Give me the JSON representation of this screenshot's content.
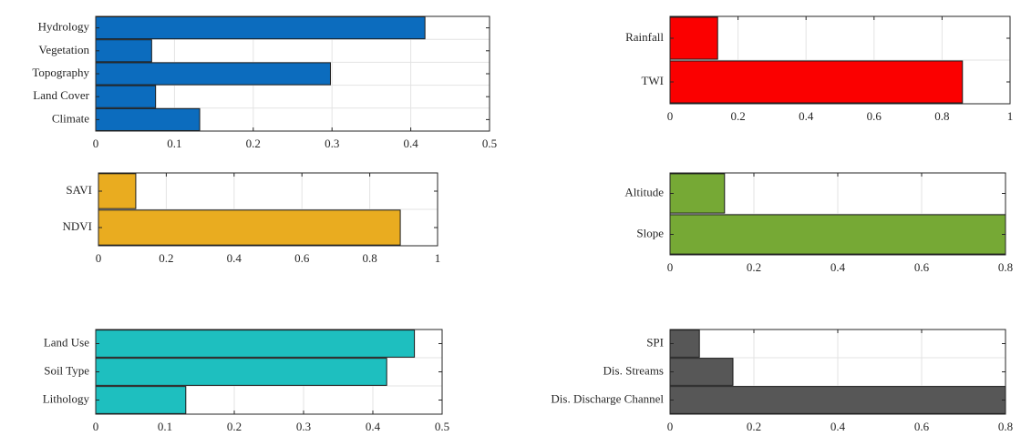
{
  "chart_data": [
    {
      "type": "bar",
      "orientation": "horizontal",
      "categories": [
        "Hydrology",
        "Vegetation",
        "Topography",
        "Land Cover",
        "Climate"
      ],
      "values": [
        0.418,
        0.071,
        0.298,
        0.076,
        0.132
      ],
      "xlim": [
        0,
        0.5
      ],
      "xticks": [
        "0",
        "0.1",
        "0.2",
        "0.3",
        "0.4",
        "0.5"
      ],
      "color": "#0c6cbe",
      "grid": true
    },
    {
      "type": "bar",
      "orientation": "horizontal",
      "categories": [
        "Rainfall",
        "TWI"
      ],
      "values": [
        0.14,
        0.86
      ],
      "xlim": [
        0,
        1
      ],
      "xticks": [
        "0",
        "0.2",
        "0.4",
        "0.6",
        "0.8",
        "1"
      ],
      "color": "#fb0000",
      "grid": true
    },
    {
      "type": "bar",
      "orientation": "horizontal",
      "categories": [
        "SAVI",
        "NDVI"
      ],
      "values": [
        0.11,
        0.89
      ],
      "xlim": [
        0,
        1
      ],
      "xticks": [
        "0",
        "0.2",
        "0.4",
        "0.6",
        "0.8",
        "1"
      ],
      "color": "#e9ac20",
      "grid": true
    },
    {
      "type": "bar",
      "orientation": "horizontal",
      "categories": [
        "Altitude",
        "Slope"
      ],
      "values": [
        0.13,
        0.8
      ],
      "xlim": [
        0,
        0.8
      ],
      "xticks": [
        "0",
        "0.2",
        "0.4",
        "0.6",
        "0.8"
      ],
      "color": "#76a935",
      "grid": true
    },
    {
      "type": "bar",
      "orientation": "horizontal",
      "categories": [
        "Land Use",
        "Soil Type",
        "Lithology"
      ],
      "values": [
        0.46,
        0.42,
        0.13
      ],
      "xlim": [
        0,
        0.5
      ],
      "xticks": [
        "0",
        "0.1",
        "0.2",
        "0.3",
        "0.4",
        "0.5"
      ],
      "color": "#1ebfbf",
      "grid": true
    },
    {
      "type": "bar",
      "orientation": "horizontal",
      "categories": [
        "SPI",
        "Dis. Streams",
        "Dis. Discharge Channel"
      ],
      "values": [
        0.07,
        0.15,
        0.8
      ],
      "xlim": [
        0,
        0.8
      ],
      "xticks": [
        "0",
        "0.2",
        "0.4",
        "0.6",
        "0.8"
      ],
      "color": "#575757",
      "grid": true
    }
  ]
}
